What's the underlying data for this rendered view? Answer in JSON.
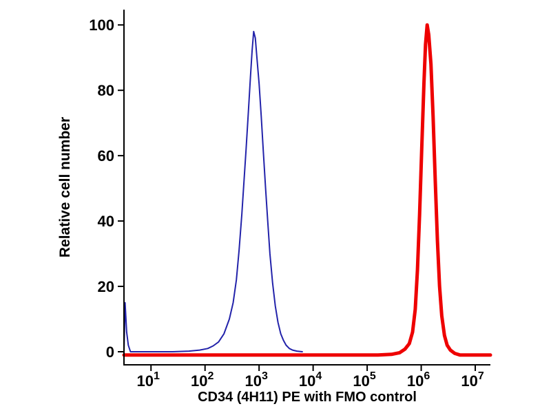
{
  "chart_data": {
    "type": "line",
    "subtype": "flow-cytometry-histogram",
    "title": "",
    "xlabel": "CD34 (4H11) PE with FMO control",
    "ylabel": "Relative cell number",
    "x_scale": "log10",
    "xlim_log10": [
      0.5,
      7.28
    ],
    "ylim": [
      -4,
      103
    ],
    "grid": false,
    "legend": "none",
    "axis_color": "#000000",
    "background_color": "#ffffff",
    "y_ticks": [
      0,
      20,
      40,
      60,
      80,
      100
    ],
    "x_ticks": [
      {
        "label": "10",
        "exp": "1",
        "log10": 1
      },
      {
        "label": "10",
        "exp": "2",
        "log10": 2
      },
      {
        "label": "10",
        "exp": "3",
        "log10": 3
      },
      {
        "label": "10",
        "exp": "4",
        "log10": 4
      },
      {
        "label": "10",
        "exp": "5",
        "log10": 5
      },
      {
        "label": "10",
        "exp": "6",
        "log10": 6
      },
      {
        "label": "10",
        "exp": "7",
        "log10": 7
      }
    ],
    "series": [
      {
        "name": "FMO control",
        "color": "#2222aa",
        "stroke_width": 2,
        "peak_x_log10": 2.9,
        "peak_y": 98,
        "points": [
          [
            0.5,
            0
          ],
          [
            0.52,
            15
          ],
          [
            0.55,
            6
          ],
          [
            0.58,
            2
          ],
          [
            0.62,
            0
          ],
          [
            1.0,
            0
          ],
          [
            1.4,
            0
          ],
          [
            1.7,
            0.2
          ],
          [
            1.9,
            0.5
          ],
          [
            2.05,
            1
          ],
          [
            2.15,
            1.8
          ],
          [
            2.25,
            3
          ],
          [
            2.35,
            5.5
          ],
          [
            2.45,
            10
          ],
          [
            2.52,
            15
          ],
          [
            2.58,
            22
          ],
          [
            2.63,
            31
          ],
          [
            2.68,
            42
          ],
          [
            2.72,
            52
          ],
          [
            2.76,
            62
          ],
          [
            2.8,
            73
          ],
          [
            2.84,
            84
          ],
          [
            2.87,
            92
          ],
          [
            2.9,
            98
          ],
          [
            2.93,
            96
          ],
          [
            2.96,
            90
          ],
          [
            3.0,
            82
          ],
          [
            3.04,
            72
          ],
          [
            3.08,
            61
          ],
          [
            3.12,
            50
          ],
          [
            3.16,
            40
          ],
          [
            3.2,
            30
          ],
          [
            3.25,
            21
          ],
          [
            3.3,
            14
          ],
          [
            3.35,
            9
          ],
          [
            3.4,
            5.5
          ],
          [
            3.45,
            3.5
          ],
          [
            3.5,
            2
          ],
          [
            3.56,
            1
          ],
          [
            3.62,
            0.5
          ],
          [
            3.7,
            0.2
          ],
          [
            3.8,
            0
          ]
        ]
      },
      {
        "name": "CD34 (4H11) PE",
        "color": "#ee0000",
        "stroke_width": 5,
        "peak_x_log10": 6.11,
        "peak_y": 100,
        "points": [
          [
            0.5,
            -1
          ],
          [
            1.5,
            -1
          ],
          [
            2.5,
            -1
          ],
          [
            3.5,
            -1
          ],
          [
            4.5,
            -1
          ],
          [
            5.2,
            -1
          ],
          [
            5.45,
            -0.8
          ],
          [
            5.6,
            -0.3
          ],
          [
            5.7,
            0.8
          ],
          [
            5.78,
            2.5
          ],
          [
            5.84,
            6
          ],
          [
            5.89,
            13
          ],
          [
            5.93,
            25
          ],
          [
            5.97,
            42
          ],
          [
            6.01,
            62
          ],
          [
            6.05,
            82
          ],
          [
            6.08,
            94
          ],
          [
            6.11,
            100
          ],
          [
            6.14,
            97
          ],
          [
            6.18,
            88
          ],
          [
            6.22,
            72
          ],
          [
            6.26,
            52
          ],
          [
            6.3,
            34
          ],
          [
            6.34,
            20
          ],
          [
            6.38,
            11
          ],
          [
            6.43,
            5
          ],
          [
            6.48,
            2
          ],
          [
            6.54,
            0.5
          ],
          [
            6.62,
            -0.5
          ],
          [
            6.72,
            -1
          ],
          [
            7.0,
            -1
          ],
          [
            7.28,
            -1
          ]
        ]
      }
    ]
  }
}
